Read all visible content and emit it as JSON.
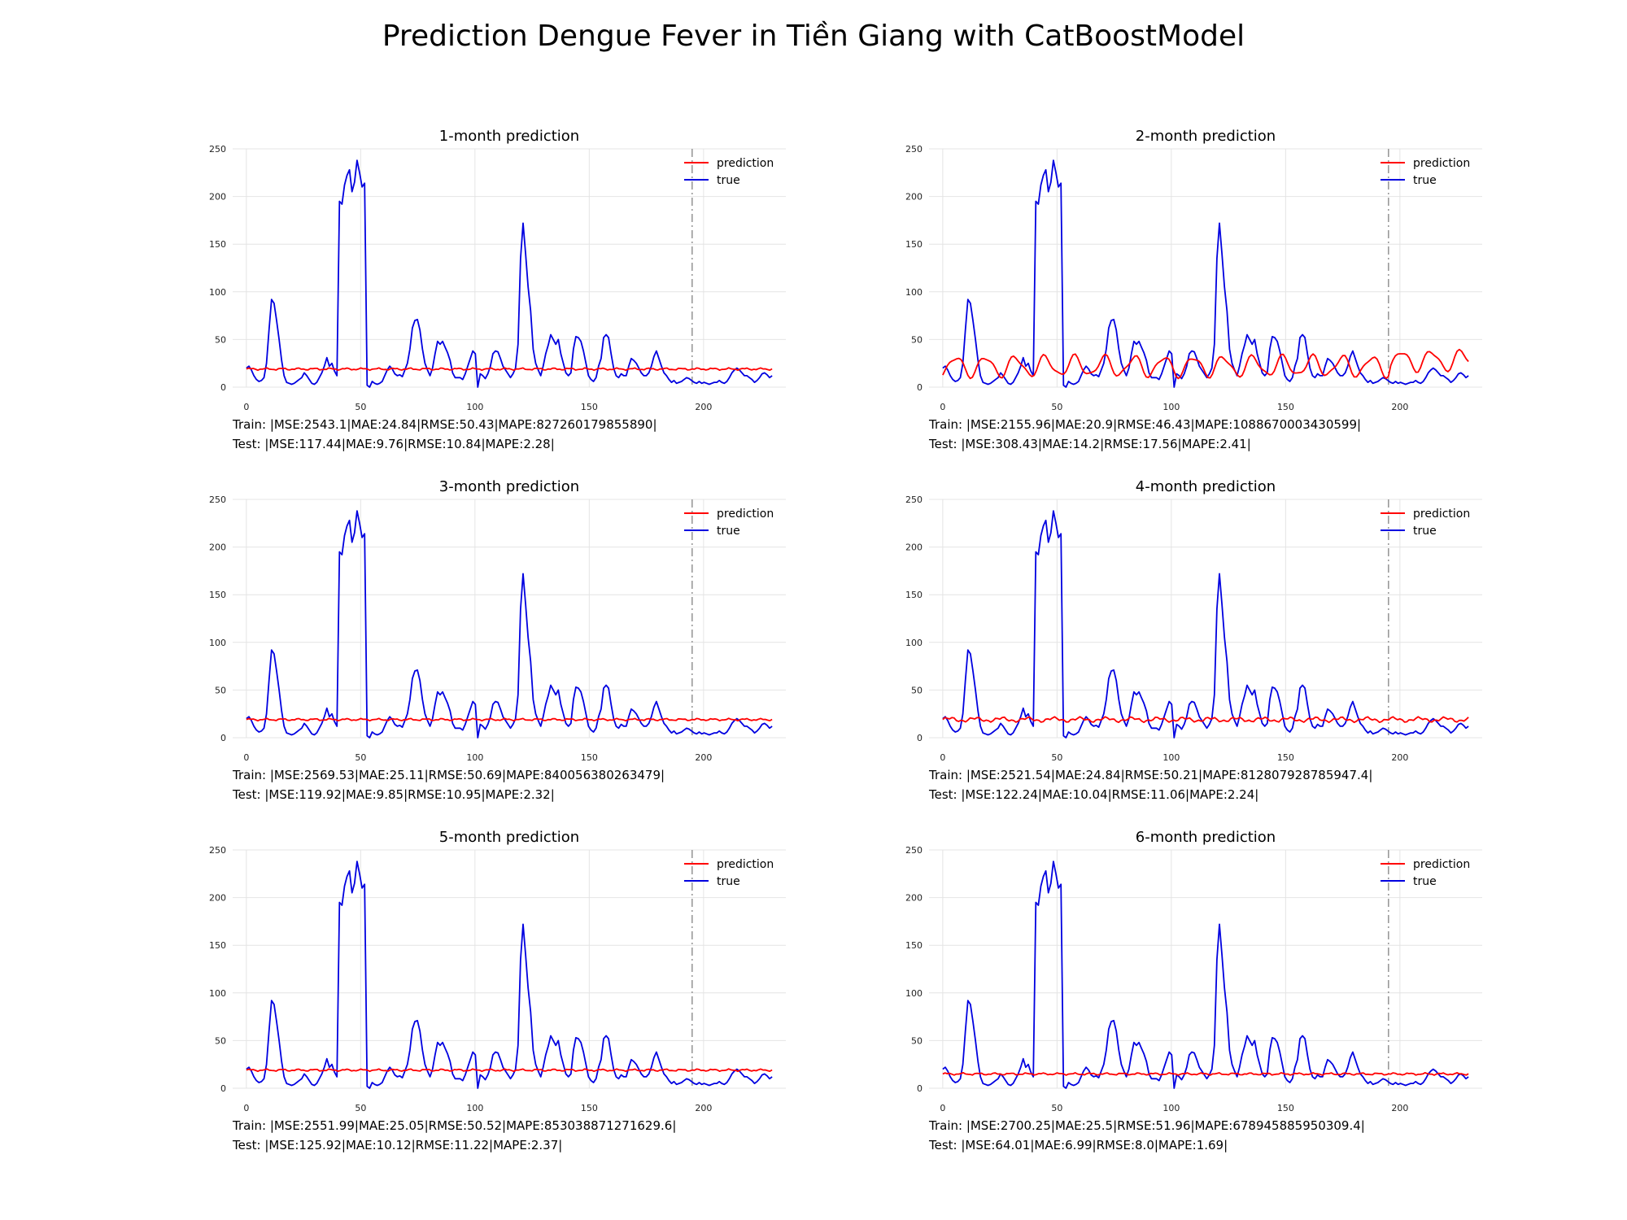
{
  "title": "Prediction Dengue Fever in Tiền Giang with CatBoostModel",
  "colors": {
    "prediction": "#ff0000",
    "true": "#0000e0",
    "grid": "#e4e4e4",
    "split_line": "#9a9a9a"
  },
  "chart_data": [
    {
      "type": "line",
      "title": "1-month prediction",
      "legend": [
        "prediction",
        "true"
      ],
      "legend_position": "top-right",
      "xlim": [
        -6,
        236
      ],
      "ylim": [
        0,
        250
      ],
      "xticks": [
        0,
        50,
        100,
        150,
        200
      ],
      "yticks": [
        0,
        50,
        100,
        150,
        200,
        250
      ],
      "grid": true,
      "split_x": 195,
      "prediction_style": "flat",
      "prediction_level": 19,
      "metrics": {
        "train": "Train: |MSE:2543.1|MAE:24.84|RMSE:50.43|MAPE:827260179855890|",
        "test": "Test: |MSE:117.44|MAE:9.76|RMSE:10.84|MAPE:2.28|"
      }
    },
    {
      "type": "line",
      "title": "2-month prediction",
      "legend": [
        "prediction",
        "true"
      ],
      "legend_position": "top-right",
      "xlim": [
        -6,
        236
      ],
      "ylim": [
        0,
        250
      ],
      "xticks": [
        0,
        50,
        100,
        150,
        200
      ],
      "yticks": [
        0,
        50,
        100,
        150,
        200,
        250
      ],
      "grid": true,
      "split_x": 195,
      "prediction_style": "seasonal",
      "prediction_level": 22,
      "metrics": {
        "train": "Train: |MSE:2155.96|MAE:20.9|RMSE:46.43|MAPE:1088670003430599|",
        "test": "Test: |MSE:308.43|MAE:14.2|RMSE:17.56|MAPE:2.41|"
      }
    },
    {
      "type": "line",
      "title": "3-month prediction",
      "legend": [
        "prediction",
        "true"
      ],
      "legend_position": "top-right",
      "xlim": [
        -6,
        236
      ],
      "ylim": [
        0,
        250
      ],
      "xticks": [
        0,
        50,
        100,
        150,
        200
      ],
      "yticks": [
        0,
        50,
        100,
        150,
        200,
        250
      ],
      "grid": true,
      "split_x": 195,
      "prediction_style": "flat",
      "prediction_level": 19,
      "metrics": {
        "train": "Train: |MSE:2569.53|MAE:25.11|RMSE:50.69|MAPE:840056380263479|",
        "test": "Test: |MSE:119.92|MAE:9.85|RMSE:10.95|MAPE:2.32|"
      }
    },
    {
      "type": "line",
      "title": "4-month prediction",
      "legend": [
        "prediction",
        "true"
      ],
      "legend_position": "top-right",
      "xlim": [
        -6,
        236
      ],
      "ylim": [
        0,
        250
      ],
      "xticks": [
        0,
        50,
        100,
        150,
        200
      ],
      "yticks": [
        0,
        50,
        100,
        150,
        200,
        250
      ],
      "grid": true,
      "split_x": 195,
      "prediction_style": "wavy",
      "prediction_level": 19,
      "metrics": {
        "train": "Train: |MSE:2521.54|MAE:24.84|RMSE:50.21|MAPE:812807928785947.4|",
        "test": "Test: |MSE:122.24|MAE:10.04|RMSE:11.06|MAPE:2.24|"
      }
    },
    {
      "type": "line",
      "title": "5-month prediction",
      "legend": [
        "prediction",
        "true"
      ],
      "legend_position": "top-right",
      "xlim": [
        -6,
        236
      ],
      "ylim": [
        0,
        250
      ],
      "xticks": [
        0,
        50,
        100,
        150,
        200
      ],
      "yticks": [
        0,
        50,
        100,
        150,
        200,
        250
      ],
      "grid": true,
      "split_x": 195,
      "prediction_style": "flat",
      "prediction_level": 19,
      "metrics": {
        "train": "Train: |MSE:2551.99|MAE:25.05|RMSE:50.52|MAPE:853038871271629.6|",
        "test": "Test: |MSE:125.92|MAE:10.12|RMSE:11.22|MAPE:2.37|"
      }
    },
    {
      "type": "line",
      "title": "6-month prediction",
      "legend": [
        "prediction",
        "true"
      ],
      "legend_position": "top-right",
      "xlim": [
        -6,
        236
      ],
      "ylim": [
        0,
        250
      ],
      "xticks": [
        0,
        50,
        100,
        150,
        200
      ],
      "yticks": [
        0,
        50,
        100,
        150,
        200,
        250
      ],
      "grid": true,
      "split_x": 195,
      "prediction_style": "flat",
      "prediction_level": 15,
      "metrics": {
        "train": "Train: |MSE:2700.25|MAE:25.5|RMSE:51.96|MAPE:678945885950309.4|",
        "test": "Test: |MSE:64.01|MAE:6.99|RMSE:8.0|MAPE:1.69|"
      }
    }
  ],
  "true_series": {
    "x_start": 0,
    "x_end": 230,
    "anchors": [
      [
        0,
        20
      ],
      [
        1,
        22
      ],
      [
        2,
        18
      ],
      [
        3,
        12
      ],
      [
        4,
        8
      ],
      [
        5,
        6
      ],
      [
        6,
        7
      ],
      [
        7,
        10
      ],
      [
        8,
        25
      ],
      [
        9,
        60
      ],
      [
        10,
        92
      ],
      [
        11,
        88
      ],
      [
        12,
        70
      ],
      [
        13,
        50
      ],
      [
        14,
        28
      ],
      [
        15,
        12
      ],
      [
        16,
        5
      ],
      [
        17,
        4
      ],
      [
        18,
        3
      ],
      [
        19,
        4
      ],
      [
        20,
        6
      ],
      [
        21,
        8
      ],
      [
        22,
        10
      ],
      [
        23,
        15
      ],
      [
        24,
        12
      ],
      [
        25,
        8
      ],
      [
        26,
        4
      ],
      [
        27,
        3
      ],
      [
        28,
        5
      ],
      [
        29,
        10
      ],
      [
        30,
        15
      ],
      [
        31,
        22
      ],
      [
        32,
        31
      ],
      [
        33,
        22
      ],
      [
        34,
        25
      ],
      [
        35,
        17
      ],
      [
        36,
        12
      ],
      [
        37,
        195
      ],
      [
        38,
        192
      ],
      [
        39,
        212
      ],
      [
        40,
        222
      ],
      [
        41,
        228
      ],
      [
        42,
        205
      ],
      [
        43,
        215
      ],
      [
        44,
        238
      ],
      [
        45,
        225
      ],
      [
        46,
        210
      ],
      [
        47,
        214
      ],
      [
        48,
        2
      ],
      [
        49,
        0
      ],
      [
        50,
        6
      ],
      [
        51,
        4
      ],
      [
        52,
        3
      ],
      [
        53,
        4
      ],
      [
        54,
        6
      ],
      [
        55,
        12
      ],
      [
        56,
        18
      ],
      [
        57,
        22
      ],
      [
        58,
        19
      ],
      [
        59,
        14
      ],
      [
        60,
        12
      ],
      [
        61,
        13
      ],
      [
        62,
        11
      ],
      [
        63,
        18
      ],
      [
        64,
        25
      ],
      [
        65,
        40
      ],
      [
        66,
        62
      ],
      [
        67,
        70
      ],
      [
        68,
        71
      ],
      [
        69,
        60
      ],
      [
        70,
        40
      ],
      [
        71,
        25
      ],
      [
        72,
        18
      ],
      [
        73,
        12
      ],
      [
        74,
        20
      ],
      [
        75,
        35
      ],
      [
        76,
        48
      ],
      [
        77,
        45
      ],
      [
        78,
        48
      ],
      [
        79,
        42
      ],
      [
        80,
        36
      ],
      [
        81,
        28
      ],
      [
        82,
        15
      ],
      [
        83,
        10
      ],
      [
        84,
        10
      ],
      [
        85,
        10
      ],
      [
        86,
        8
      ],
      [
        87,
        14
      ],
      [
        88,
        22
      ],
      [
        89,
        30
      ],
      [
        90,
        38
      ],
      [
        91,
        35
      ],
      [
        92,
        0
      ],
      [
        93,
        14
      ],
      [
        94,
        12
      ],
      [
        95,
        9
      ],
      [
        96,
        14
      ],
      [
        97,
        22
      ],
      [
        98,
        35
      ],
      [
        99,
        38
      ],
      [
        100,
        37
      ],
      [
        101,
        30
      ],
      [
        102,
        22
      ],
      [
        103,
        18
      ],
      [
        104,
        14
      ],
      [
        105,
        10
      ],
      [
        106,
        14
      ],
      [
        107,
        20
      ],
      [
        108,
        45
      ],
      [
        109,
        135
      ],
      [
        110,
        172
      ],
      [
        111,
        140
      ],
      [
        112,
        105
      ],
      [
        113,
        80
      ],
      [
        114,
        40
      ],
      [
        115,
        25
      ],
      [
        116,
        18
      ],
      [
        117,
        12
      ],
      [
        118,
        22
      ],
      [
        119,
        35
      ],
      [
        120,
        44
      ],
      [
        121,
        55
      ],
      [
        122,
        50
      ],
      [
        123,
        45
      ],
      [
        124,
        50
      ],
      [
        125,
        35
      ],
      [
        126,
        25
      ],
      [
        127,
        15
      ],
      [
        128,
        12
      ],
      [
        129,
        15
      ],
      [
        130,
        40
      ],
      [
        131,
        53
      ],
      [
        132,
        52
      ],
      [
        133,
        48
      ],
      [
        134,
        38
      ],
      [
        135,
        25
      ],
      [
        136,
        12
      ],
      [
        137,
        8
      ],
      [
        138,
        6
      ],
      [
        139,
        10
      ],
      [
        140,
        22
      ],
      [
        141,
        30
      ],
      [
        142,
        52
      ],
      [
        143,
        55
      ],
      [
        144,
        52
      ],
      [
        145,
        35
      ],
      [
        146,
        20
      ],
      [
        147,
        12
      ],
      [
        148,
        10
      ],
      [
        149,
        14
      ],
      [
        150,
        12
      ],
      [
        151,
        12
      ],
      [
        152,
        22
      ],
      [
        153,
        30
      ],
      [
        154,
        28
      ],
      [
        155,
        25
      ],
      [
        156,
        20
      ],
      [
        157,
        15
      ],
      [
        158,
        12
      ],
      [
        159,
        12
      ],
      [
        160,
        15
      ],
      [
        161,
        22
      ],
      [
        162,
        32
      ],
      [
        163,
        38
      ],
      [
        164,
        30
      ],
      [
        165,
        22
      ],
      [
        166,
        15
      ],
      [
        167,
        12
      ],
      [
        168,
        8
      ],
      [
        169,
        5
      ],
      [
        170,
        7
      ],
      [
        171,
        4
      ],
      [
        172,
        5
      ],
      [
        173,
        6
      ],
      [
        174,
        8
      ],
      [
        175,
        10
      ],
      [
        176,
        9
      ],
      [
        177,
        7
      ],
      [
        178,
        5
      ],
      [
        179,
        4
      ],
      [
        180,
        6
      ],
      [
        181,
        4
      ],
      [
        182,
        5
      ],
      [
        183,
        4
      ],
      [
        184,
        3
      ],
      [
        185,
        4
      ],
      [
        186,
        5
      ],
      [
        187,
        5
      ],
      [
        188,
        7
      ],
      [
        189,
        5
      ],
      [
        190,
        4
      ],
      [
        191,
        6
      ],
      [
        192,
        10
      ],
      [
        193,
        15
      ],
      [
        194,
        18
      ],
      [
        195,
        20
      ],
      [
        196,
        18
      ],
      [
        197,
        15
      ],
      [
        198,
        12
      ],
      [
        199,
        12
      ],
      [
        200,
        10
      ],
      [
        201,
        8
      ],
      [
        202,
        5
      ],
      [
        203,
        7
      ],
      [
        204,
        10
      ],
      [
        205,
        14
      ],
      [
        206,
        15
      ],
      [
        207,
        13
      ],
      [
        208,
        10
      ],
      [
        209,
        12
      ]
    ]
  }
}
